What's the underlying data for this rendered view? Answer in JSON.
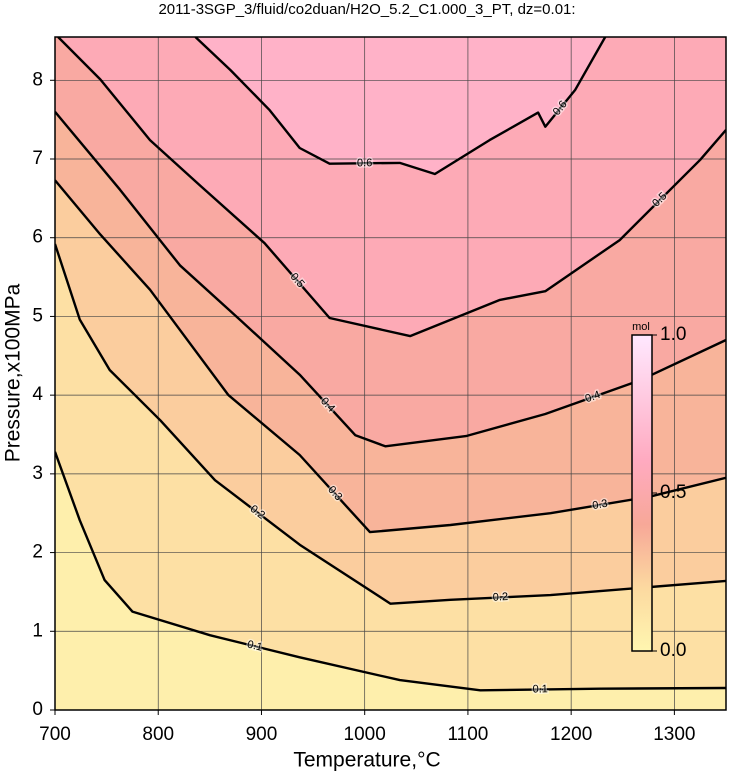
{
  "chart_data": {
    "type": "contour",
    "title": "2011-3SGP_3/fluid/co2duan/H2O_5.2_C1.000_3_PT, dz=0.01:",
    "xlabel": "Temperature,°C",
    "ylabel": "Pressure,x100MPa",
    "xlim": [
      700,
      1350
    ],
    "ylim": [
      0,
      8.55
    ],
    "xticks": [
      700,
      800,
      900,
      1000,
      1100,
      1200,
      1300
    ],
    "yticks": [
      0,
      1,
      2,
      3,
      4,
      5,
      6,
      7,
      8
    ],
    "grid": true,
    "contours": [
      {
        "level": 0.1,
        "x": [
          700,
          724,
          748,
          775,
          850,
          937,
          1034,
          1112,
          1228,
          1350
        ],
        "y": [
          3.28,
          2.41,
          1.65,
          1.25,
          0.95,
          0.67,
          0.38,
          0.25,
          0.27,
          0.28
        ]
      },
      {
        "level": 0.2,
        "x": [
          700,
          724,
          753,
          802,
          855,
          937,
          1025,
          1083,
          1180,
          1350
        ],
        "y": [
          5.92,
          4.96,
          4.32,
          3.68,
          2.92,
          2.1,
          1.35,
          1.4,
          1.46,
          1.64
        ]
      },
      {
        "level": 0.3,
        "x": [
          700,
          744,
          792,
          868,
          937,
          1005,
          1083,
          1180,
          1276,
          1350
        ],
        "y": [
          6.73,
          6.04,
          5.34,
          4.0,
          3.24,
          2.26,
          2.35,
          2.5,
          2.71,
          2.95
        ]
      },
      {
        "level": 0.4,
        "x": [
          700,
          763,
          821,
          879,
          937,
          991,
          1020,
          1098,
          1175,
          1267,
          1350
        ],
        "y": [
          7.6,
          6.61,
          5.65,
          4.96,
          4.26,
          3.49,
          3.35,
          3.48,
          3.76,
          4.19,
          4.7
        ]
      },
      {
        "level": 0.5,
        "x": [
          703,
          744,
          792,
          840,
          903,
          966,
          1044,
          1131,
          1175,
          1247,
          1325,
          1350
        ],
        "y": [
          8.55,
          8.01,
          7.24,
          6.67,
          5.93,
          4.98,
          4.75,
          5.21,
          5.32,
          5.97,
          6.99,
          7.37
        ]
      },
      {
        "level": 0.6,
        "x": [
          836,
          870,
          908,
          937,
          966,
          1034,
          1068,
          1121,
          1168,
          1175,
          1204,
          1233
        ],
        "y": [
          8.55,
          8.13,
          7.62,
          7.14,
          6.94,
          6.95,
          6.81,
          7.24,
          7.59,
          7.41,
          7.88,
          8.55
        ]
      }
    ],
    "colormap": [
      {
        "value": 0,
        "color": "#fff6b0"
      },
      {
        "value": 0.2,
        "color": "#fcd9a0"
      },
      {
        "value": 0.4,
        "color": "#f7a898"
      },
      {
        "value": 0.6,
        "color": "#ffaac0"
      },
      {
        "value": 1,
        "color": "#ffe8ff"
      }
    ],
    "colorbar": {
      "label": "mol",
      "lim": [
        0,
        1
      ],
      "ticks": [
        {
          "value": 0,
          "label": "0.0"
        },
        {
          "value": 0.5,
          "label": "0.5"
        },
        {
          "value": 1,
          "label": "1.0"
        }
      ]
    }
  }
}
